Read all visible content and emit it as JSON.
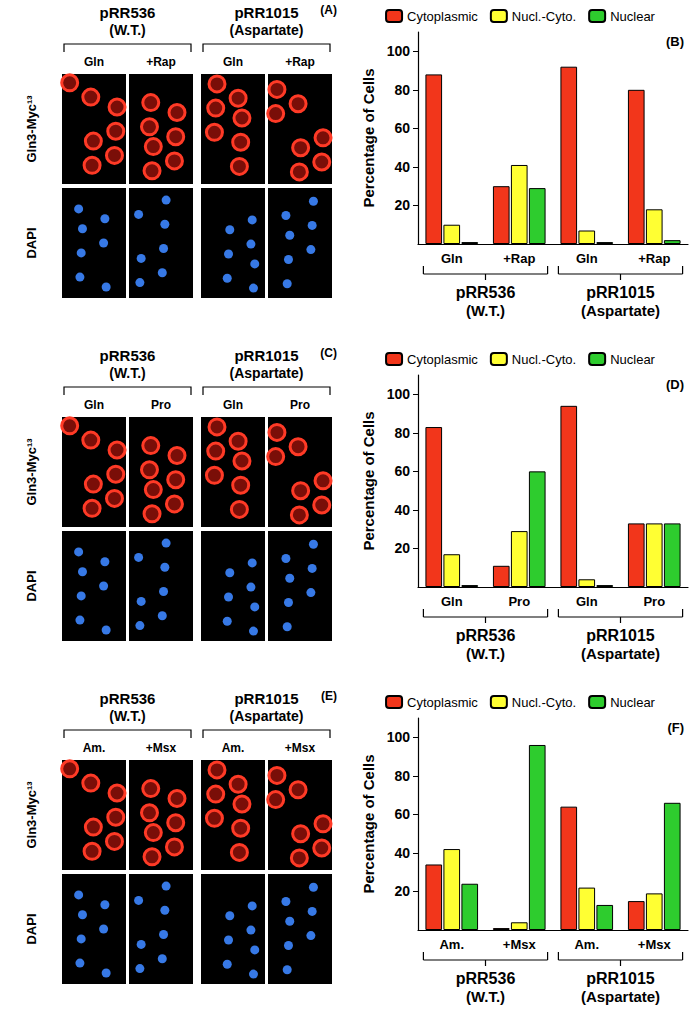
{
  "chart_data": [
    {
      "type": "bar",
      "annotation": "(B)",
      "y_label": "Percentage of Cells",
      "categories": [
        "Gln",
        "+Rap",
        "Gln",
        "+Rap"
      ],
      "groups": [
        [
          "pRR536",
          "(W.T.)"
        ],
        [
          "pRR1015",
          "(Aspartate)"
        ]
      ],
      "series": [
        {
          "name": "Cytoplasmic",
          "color": "#f2361b",
          "values": [
            88,
            30,
            92,
            80
          ]
        },
        {
          "name": "Nucl.-Cyto.",
          "color": "#ffff33",
          "values": [
            10,
            41,
            7,
            18
          ]
        },
        {
          "name": "Nuclear",
          "color": "#2ecc2e",
          "values": [
            1,
            29,
            1,
            2
          ]
        }
      ],
      "ylim": [
        0,
        110
      ],
      "yticks": [
        20,
        40,
        60,
        80,
        100
      ],
      "grid": false,
      "legend": "top"
    },
    {
      "type": "bar",
      "annotation": "(D)",
      "y_label": "Percentage of Cells",
      "categories": [
        "Gln",
        "Pro",
        "Gln",
        "Pro"
      ],
      "groups": [
        [
          "pRR536",
          "(W.T.)"
        ],
        [
          "pRR1015",
          "(Aspartate)"
        ]
      ],
      "series": [
        {
          "name": "Cytoplasmic",
          "color": "#f2361b",
          "values": [
            83,
            11,
            94,
            33
          ]
        },
        {
          "name": "Nucl.-Cyto.",
          "color": "#ffff33",
          "values": [
            17,
            29,
            4,
            33
          ]
        },
        {
          "name": "Nuclear",
          "color": "#2ecc2e",
          "values": [
            1,
            60,
            1,
            33
          ]
        }
      ],
      "ylim": [
        0,
        110
      ],
      "yticks": [
        20,
        40,
        60,
        80,
        100
      ],
      "grid": false,
      "legend": "top"
    },
    {
      "type": "bar",
      "annotation": "(F)",
      "y_label": "Percentage of Cells",
      "categories": [
        "Am.",
        "+Msx",
        "Am.",
        "+Msx"
      ],
      "groups": [
        [
          "pRR536",
          "(W.T.)"
        ],
        [
          "pRR1015",
          "(Aspartate)"
        ]
      ],
      "series": [
        {
          "name": "Cytoplasmic",
          "color": "#f2361b",
          "values": [
            34,
            1,
            64,
            15
          ]
        },
        {
          "name": "Nucl.-Cyto.",
          "color": "#ffff33",
          "values": [
            42,
            4,
            22,
            19
          ]
        },
        {
          "name": "Nuclear",
          "color": "#2ecc2e",
          "values": [
            24,
            96,
            13,
            66
          ]
        }
      ],
      "ylim": [
        0,
        110
      ],
      "yticks": [
        20,
        40,
        60,
        80,
        100
      ],
      "grid": false,
      "legend": "top"
    }
  ],
  "image_panels": [
    {
      "panel_label": "(A)",
      "row_labels": [
        "Gln3-Myc¹³",
        "DAPI"
      ],
      "groups": [
        {
          "label": [
            "pRR536",
            "(W.T.)"
          ],
          "conditions": [
            "Gln",
            "+Rap"
          ]
        },
        {
          "label": [
            "pRR1015",
            "(Aspartate)"
          ],
          "conditions": [
            "Gln",
            "+Rap"
          ]
        }
      ]
    },
    {
      "panel_label": "(C)",
      "row_labels": [
        "Gln3-Myc¹³",
        "DAPI"
      ],
      "groups": [
        {
          "label": [
            "pRR536",
            "(W.T.)"
          ],
          "conditions": [
            "Gln",
            "Pro"
          ]
        },
        {
          "label": [
            "pRR1015",
            "(Aspartate)"
          ],
          "conditions": [
            "Gln",
            "Pro"
          ]
        }
      ]
    },
    {
      "panel_label": "(E)",
      "row_labels": [
        "Gln3-Myc¹³",
        "DAPI"
      ],
      "groups": [
        {
          "label": [
            "pRR536",
            "(W.T.)"
          ],
          "conditions": [
            "Am.",
            "+Msx"
          ]
        },
        {
          "label": [
            "pRR1015",
            "(Aspartate)"
          ],
          "conditions": [
            "Am.",
            "+Msx"
          ]
        }
      ]
    }
  ]
}
